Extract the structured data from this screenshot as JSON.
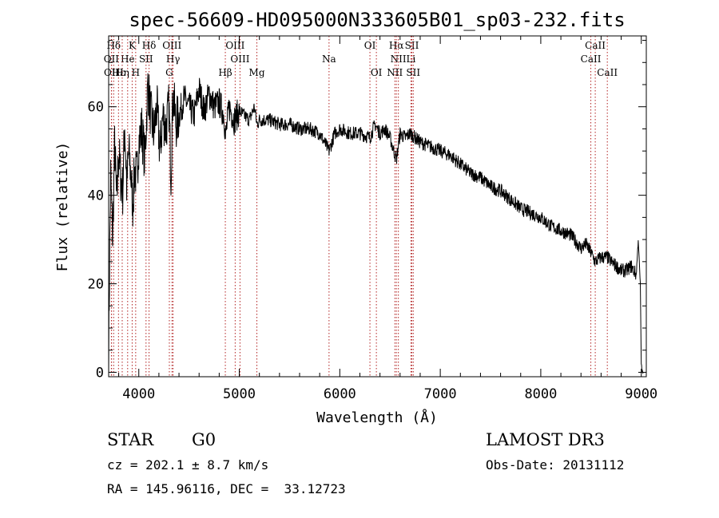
{
  "chart_data": {
    "type": "line",
    "title": "spec-56609-HD095000N333605B01_sp03-232.fits",
    "xlabel": "Wavelength (Å)",
    "ylabel": "Flux (relative)",
    "xlim": [
      3700,
      9050
    ],
    "ylim": [
      -1,
      76
    ],
    "xticks": [
      4000,
      5000,
      6000,
      7000,
      8000,
      9000
    ],
    "yticks": [
      0,
      20,
      40,
      60
    ],
    "series": [
      {
        "name": "spectrum",
        "color": "#000000",
        "x": [
          3700,
          3720,
          3740,
          3760,
          3780,
          3800,
          3820,
          3840,
          3860,
          3880,
          3900,
          3920,
          3940,
          3960,
          3980,
          4000,
          4030,
          4060,
          4090,
          4120,
          4150,
          4180,
          4210,
          4240,
          4270,
          4300,
          4320,
          4340,
          4370,
          4400,
          4450,
          4500,
          4550,
          4600,
          4650,
          4700,
          4750,
          4800,
          4850,
          4862,
          4900,
          4950,
          5000,
          5050,
          5100,
          5150,
          5175,
          5200,
          5300,
          5400,
          5500,
          5600,
          5700,
          5800,
          5893,
          5950,
          6000,
          6100,
          6200,
          6300,
          6350,
          6400,
          6450,
          6500,
          6563,
          6600,
          6650,
          6700,
          6750,
          6800,
          6900,
          7000,
          7100,
          7200,
          7300,
          7400,
          7500,
          7600,
          7700,
          7800,
          7900,
          8000,
          8100,
          8200,
          8300,
          8400,
          8450,
          8500,
          8542,
          8600,
          8662,
          8700,
          8750,
          8800,
          8850,
          8900,
          8950,
          8970,
          8990,
          9000,
          9010,
          9020
        ],
        "values": [
          5,
          45,
          30,
          52,
          38,
          50,
          44,
          41,
          56,
          42,
          50,
          45,
          38,
          46,
          44,
          52,
          55,
          48,
          65,
          58,
          54,
          60,
          50,
          58,
          55,
          60,
          45,
          63,
          56,
          58,
          62,
          60,
          58,
          64,
          59,
          63,
          60,
          61,
          58,
          53,
          60,
          57,
          59,
          58,
          57,
          60,
          56,
          57,
          57,
          56,
          56,
          55,
          55,
          54,
          50,
          54,
          55,
          54,
          54,
          53,
          56,
          54,
          55,
          53,
          48,
          54,
          53,
          54,
          53,
          52,
          51,
          50,
          49,
          47,
          45,
          44,
          42,
          41,
          39,
          37,
          36,
          35,
          33,
          32,
          31,
          28,
          29,
          27,
          25,
          26,
          26,
          25,
          24,
          23,
          23,
          24,
          22,
          30,
          20,
          2,
          0,
          0
        ]
      }
    ],
    "lines": [
      {
        "label": "Hδ",
        "x": 3750,
        "row": 0
      },
      {
        "label": "K",
        "x": 3934,
        "row": 0
      },
      {
        "label": "Hδ",
        "x": 4102,
        "row": 0
      },
      {
        "label": "OIII",
        "x": 4330,
        "row": 0
      },
      {
        "label": "OIII",
        "x": 4959,
        "row": 0
      },
      {
        "label": "OI",
        "x": 6300,
        "row": 0
      },
      {
        "label": "Hα",
        "x": 6563,
        "row": 0
      },
      {
        "label": "SII",
        "x": 6717,
        "row": 0
      },
      {
        "label": "CaII",
        "x": 8542,
        "row": 0
      },
      {
        "label": "OII",
        "x": 3727,
        "row": 1
      },
      {
        "label": "He",
        "x": 3889,
        "row": 1
      },
      {
        "label": "SII",
        "x": 4072,
        "row": 1
      },
      {
        "label": "Hγ",
        "x": 4341,
        "row": 1
      },
      {
        "label": "OIII",
        "x": 5007,
        "row": 1
      },
      {
        "label": "Na",
        "x": 5893,
        "row": 1
      },
      {
        "label": "NII",
        "x": 6583,
        "row": 1
      },
      {
        "label": "Li",
        "x": 6708,
        "row": 1
      },
      {
        "label": "CaII",
        "x": 8498,
        "row": 1
      },
      {
        "label": "OII",
        "x": 3729,
        "row": 2
      },
      {
        "label": "Hε",
        "x": 3798,
        "row": 2
      },
      {
        "label": "Hη",
        "x": 3835,
        "row": 2
      },
      {
        "label": "H",
        "x": 3969,
        "row": 2
      },
      {
        "label": "G",
        "x": 4304,
        "row": 2
      },
      {
        "label": "Hβ",
        "x": 4861,
        "row": 2
      },
      {
        "label": "Mg",
        "x": 5175,
        "row": 2
      },
      {
        "label": "OI",
        "x": 6364,
        "row": 2
      },
      {
        "label": "NII",
        "x": 6548,
        "row": 2
      },
      {
        "label": "SII",
        "x": 6731,
        "row": 2
      },
      {
        "label": "CaII",
        "x": 8662,
        "row": 2
      }
    ]
  },
  "info": {
    "class": "STAR",
    "subclass": "G0",
    "survey": "LAMOST DR3",
    "cz": "cz = 202.1 ± 8.7 km/s",
    "obsdate": "Obs-Date: 20131112",
    "coords": "RA = 145.96116, DEC =  33.12723"
  }
}
